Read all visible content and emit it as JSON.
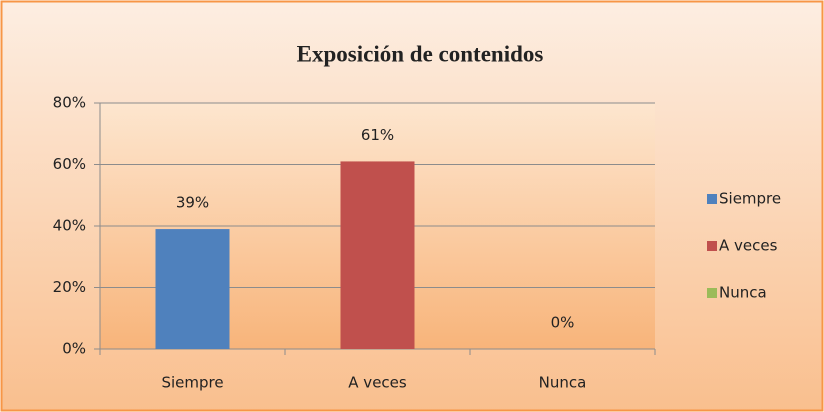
{
  "chart_data": {
    "type": "bar",
    "title": "Exposición de contenidos",
    "categories": [
      "Siempre",
      "A veces",
      "Nunca"
    ],
    "values": [
      39,
      61,
      0
    ],
    "value_labels": [
      "39%",
      "61%",
      "0%"
    ],
    "colors": [
      "#4f81bd",
      "#c0504d",
      "#9bbb59"
    ],
    "ylim": [
      0,
      80
    ],
    "yticks": [
      {
        "value": 0,
        "label": "0%"
      },
      {
        "value": 20,
        "label": "20%"
      },
      {
        "value": 40,
        "label": "40%"
      },
      {
        "value": 60,
        "label": "60%"
      },
      {
        "value": 80,
        "label": "80%"
      }
    ],
    "grid": true,
    "legend": "right"
  }
}
